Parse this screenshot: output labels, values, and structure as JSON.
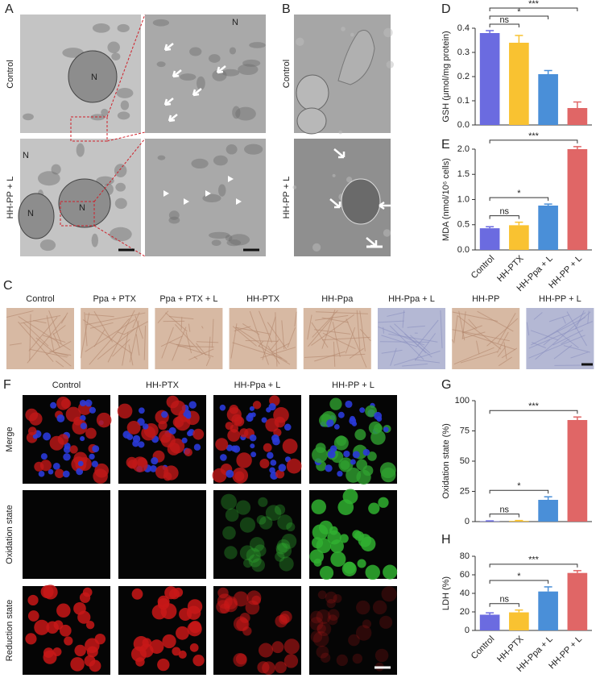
{
  "panels": {
    "A": {
      "letter": "A",
      "rows": [
        "Control",
        "HH-PP + L"
      ],
      "nucleus_labels": [
        "N",
        "N",
        "N",
        "N",
        "N"
      ]
    },
    "B": {
      "letter": "B",
      "rows": [
        "Control",
        "HH-PP + L"
      ]
    },
    "C": {
      "letter": "C",
      "columns": [
        "Control",
        "Ppa + PTX",
        "Ppa + PTX + L",
        "HH-PTX",
        "HH-Ppa",
        "HH-Ppa + L",
        "HH-PP",
        "HH-PP + L"
      ]
    },
    "F": {
      "letter": "F",
      "columns": [
        "Control",
        "HH-PTX",
        "HH-Ppa + L",
        "HH-PP + L"
      ],
      "rows": [
        "Merge",
        "Oxidation state",
        "Reduction state"
      ]
    }
  },
  "chart_data": [
    {
      "type": "bar",
      "panel": "D",
      "y_label": "GSH (μmol/mg protein)",
      "values": [
        0.38,
        0.34,
        0.21,
        0.07
      ],
      "errors": [
        0.01,
        0.03,
        0.015,
        0.025
      ],
      "colors": [
        "#6b6be0",
        "#f9c231",
        "#4a8fd8",
        "#e06666"
      ],
      "ylim": [
        0,
        0.4
      ],
      "yticks": [
        {
          "value": 0,
          "label": "0.0"
        },
        0.1,
        0.2,
        0.3,
        0.4
      ],
      "annotations": [
        "ns",
        "*",
        "***"
      ]
    },
    {
      "type": "bar",
      "panel": "E",
      "y_label": "MDA (nmol/10⁶ cells)",
      "categories": [
        "Control",
        "HH-PTX",
        "HH-Ppa + L",
        "HH-PP + L"
      ],
      "values": [
        0.43,
        0.49,
        0.88,
        2.0
      ],
      "errors": [
        0.03,
        0.06,
        0.03,
        0.05
      ],
      "colors": [
        "#6b6be0",
        "#f9c231",
        "#4a8fd8",
        "#e06666"
      ],
      "ylim": [
        0,
        2
      ],
      "yticks": [
        {
          "value": 0,
          "label": "0.0"
        },
        0.5,
        {
          "value": 1,
          "label": "1.0"
        },
        1.5,
        {
          "value": 2,
          "label": "2.0"
        }
      ],
      "annotations": [
        "ns",
        "*",
        "***"
      ]
    },
    {
      "type": "bar",
      "panel": "G",
      "y_label": "Oxidation state (%)",
      "values": [
        0.3,
        0.6,
        18,
        84
      ],
      "errors": [
        0.3,
        0.3,
        2.5,
        2.5
      ],
      "colors": [
        "#6b6be0",
        "#f9c231",
        "#4a8fd8",
        "#e06666"
      ],
      "ylim": [
        0,
        100
      ],
      "yticks": [
        0,
        25,
        50,
        75,
        100
      ],
      "annotations": [
        "ns",
        "*",
        "***"
      ]
    },
    {
      "type": "bar",
      "panel": "H",
      "y_label": "LDH (%)",
      "categories": [
        "Control",
        "HH-PTX",
        "HH-Ppa + L",
        "HH-PP + L"
      ],
      "values": [
        17,
        19.5,
        42,
        62
      ],
      "errors": [
        2,
        2.5,
        5,
        2.5
      ],
      "colors": [
        "#6b6be0",
        "#f9c231",
        "#4a8fd8",
        "#e06666"
      ],
      "ylim": [
        0,
        80
      ],
      "yticks": [
        0,
        20,
        40,
        60,
        80
      ],
      "annotations": [
        "ns",
        "*",
        "***"
      ]
    }
  ]
}
